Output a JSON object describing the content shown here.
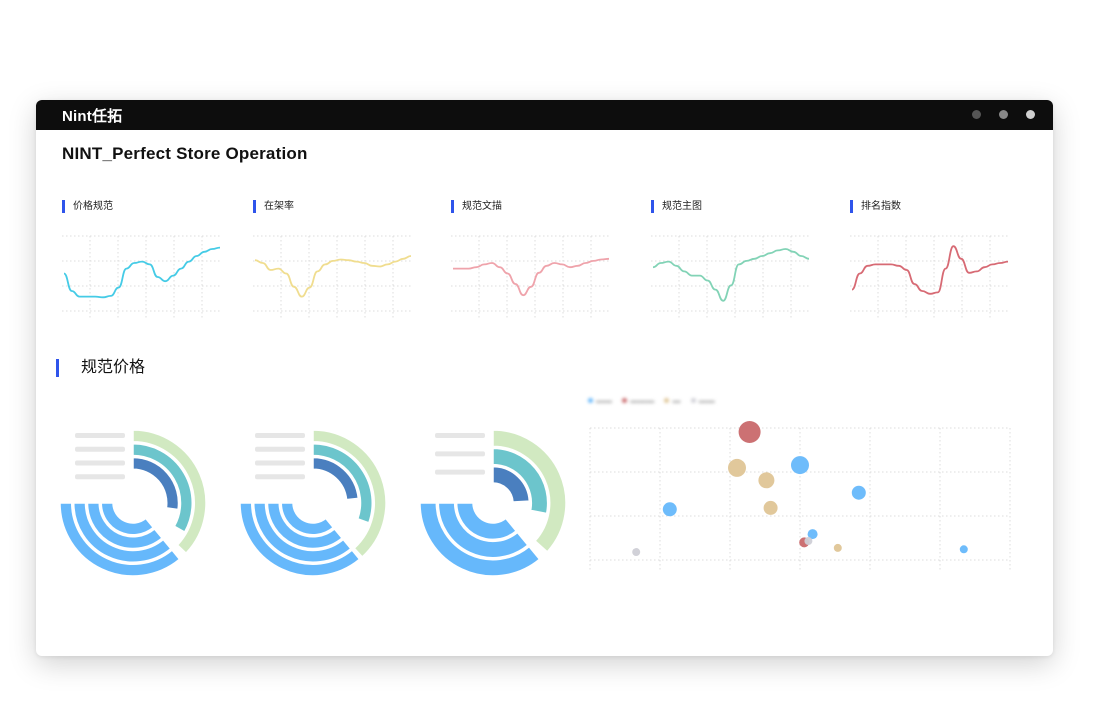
{
  "app": {
    "logo": "Nint任拓",
    "title": "NINT_Perfect Store Operation"
  },
  "titlebar_buttons": [
    {
      "name": "window-dot-1",
      "color": "#555555"
    },
    {
      "name": "window-dot-2",
      "color": "#888888"
    },
    {
      "name": "window-dot-3",
      "color": "#cfcfcf"
    }
  ],
  "section_title": "规范价格",
  "colors": {
    "accent": "#2f54eb",
    "blue": "#66b8fb",
    "teal": "#6cc5cc",
    "green": "#d1e9c1",
    "navy": "#4a7fbf",
    "red": "#c9696c",
    "tan": "#dfc596",
    "gray": "#cfcfd6"
  },
  "chart_data": [
    {
      "type": "line",
      "title": "价格规范",
      "color": "#45cbe6",
      "x": [
        0,
        1,
        2,
        3,
        4,
        5,
        6,
        7,
        8,
        9,
        10,
        11,
        12,
        13,
        14,
        15,
        16,
        17,
        18,
        19,
        20
      ],
      "values": [
        0.55,
        0.3,
        0.22,
        0.22,
        0.22,
        0.21,
        0.23,
        0.35,
        0.62,
        0.7,
        0.72,
        0.68,
        0.5,
        0.44,
        0.52,
        0.62,
        0.72,
        0.8,
        0.86,
        0.9,
        0.92
      ],
      "grid": true
    },
    {
      "type": "line",
      "title": "在架率",
      "color": "#f0dd8f",
      "x": [
        0,
        1,
        2,
        3,
        4,
        5,
        6,
        7,
        8,
        9,
        10,
        11,
        12,
        13,
        14,
        15,
        16,
        17,
        18,
        19,
        20
      ],
      "values": [
        0.74,
        0.7,
        0.6,
        0.62,
        0.55,
        0.36,
        0.22,
        0.35,
        0.58,
        0.68,
        0.73,
        0.75,
        0.74,
        0.72,
        0.7,
        0.66,
        0.65,
        0.68,
        0.72,
        0.76,
        0.8
      ],
      "grid": true
    },
    {
      "type": "line",
      "title": "规范文描",
      "color": "#efa3ab",
      "x": [
        0,
        1,
        2,
        3,
        4,
        5,
        6,
        7,
        8,
        9,
        10,
        11,
        12,
        13,
        14,
        15,
        16,
        17,
        18,
        19,
        20
      ],
      "values": [
        0.62,
        0.62,
        0.62,
        0.64,
        0.68,
        0.7,
        0.64,
        0.55,
        0.4,
        0.24,
        0.36,
        0.56,
        0.66,
        0.7,
        0.68,
        0.64,
        0.66,
        0.7,
        0.73,
        0.75,
        0.76
      ],
      "grid": true
    },
    {
      "type": "line",
      "title": "规范主图",
      "color": "#82d3b6",
      "x": [
        0,
        1,
        2,
        3,
        4,
        5,
        6,
        7,
        8,
        9,
        10,
        11,
        12,
        13,
        14,
        15,
        16,
        17,
        18,
        19,
        20
      ],
      "values": [
        0.64,
        0.7,
        0.72,
        0.66,
        0.58,
        0.52,
        0.52,
        0.45,
        0.32,
        0.16,
        0.38,
        0.68,
        0.73,
        0.76,
        0.8,
        0.84,
        0.88,
        0.9,
        0.86,
        0.8,
        0.76
      ],
      "grid": true
    },
    {
      "type": "line",
      "title": "排名指数",
      "color": "#d76a74",
      "x": [
        0,
        1,
        2,
        3,
        4,
        5,
        6,
        7,
        8,
        9,
        10,
        11,
        12,
        13,
        14,
        15,
        16,
        17,
        18,
        19,
        20
      ],
      "values": [
        0.32,
        0.55,
        0.66,
        0.68,
        0.68,
        0.68,
        0.66,
        0.6,
        0.4,
        0.3,
        0.26,
        0.28,
        0.62,
        0.94,
        0.76,
        0.56,
        0.58,
        0.64,
        0.68,
        0.7,
        0.72
      ],
      "grid": true
    },
    {
      "type": "polar-bar",
      "rings": [
        {
          "value": 0.95,
          "color": "#d1e9c1"
        },
        {
          "value": 0.85,
          "color": "#6cc5cc"
        },
        {
          "value": 0.7,
          "color": "#4a7fbf"
        },
        {
          "value": 0.0,
          "color": "#4a7fbf"
        }
      ],
      "base_color": "#66b8fb",
      "base_fraction": 0.52
    },
    {
      "type": "polar-bar",
      "rings": [
        {
          "value": 0.98,
          "color": "#d1e9c1"
        },
        {
          "value": 0.78,
          "color": "#6cc5cc"
        },
        {
          "value": 0.6,
          "color": "#4a7fbf"
        },
        {
          "value": 0.0,
          "color": "#4a7fbf"
        }
      ],
      "base_color": "#66b8fb",
      "base_fraction": 0.52
    },
    {
      "type": "polar-bar",
      "rings": [
        {
          "value": 0.94,
          "color": "#d1e9c1"
        },
        {
          "value": 0.72,
          "color": "#6cc5cc"
        },
        {
          "value": 0.62,
          "color": "#4a7fbf"
        }
      ],
      "base_color": "#66b8fb",
      "base_fraction": 0.52
    },
    {
      "type": "scatter",
      "grid": true,
      "points": [
        {
          "x": 0.38,
          "y": 1.0,
          "r": 11,
          "color": "#c9696c"
        },
        {
          "x": 0.35,
          "y": 0.74,
          "r": 9,
          "color": "#dfc596"
        },
        {
          "x": 0.5,
          "y": 0.76,
          "r": 9,
          "color": "#66b8fb"
        },
        {
          "x": 0.42,
          "y": 0.65,
          "r": 8,
          "color": "#dfc596"
        },
        {
          "x": 0.64,
          "y": 0.56,
          "r": 7,
          "color": "#66b8fb"
        },
        {
          "x": 0.19,
          "y": 0.44,
          "r": 7,
          "color": "#66b8fb"
        },
        {
          "x": 0.43,
          "y": 0.45,
          "r": 7,
          "color": "#dfc596"
        },
        {
          "x": 0.53,
          "y": 0.26,
          "r": 5,
          "color": "#66b8fb"
        },
        {
          "x": 0.51,
          "y": 0.2,
          "r": 5,
          "color": "#c9696c"
        },
        {
          "x": 0.52,
          "y": 0.21,
          "r": 4,
          "color": "#cfcfd6"
        },
        {
          "x": 0.59,
          "y": 0.16,
          "r": 4,
          "color": "#dfc596"
        },
        {
          "x": 0.11,
          "y": 0.13,
          "r": 4,
          "color": "#cfcfd6"
        },
        {
          "x": 0.89,
          "y": 0.15,
          "r": 4,
          "color": "#66b8fb"
        }
      ]
    }
  ]
}
